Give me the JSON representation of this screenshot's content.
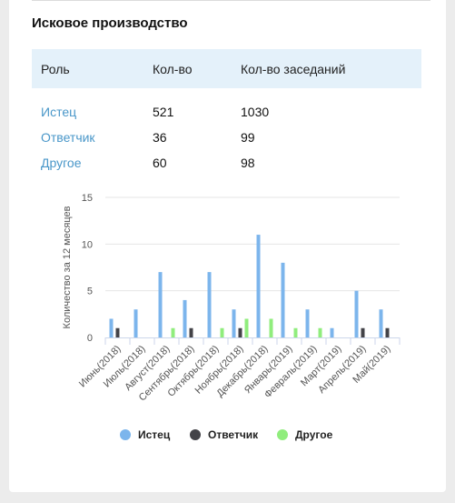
{
  "section": {
    "title": "Исковое производство"
  },
  "table": {
    "headers": [
      "Роль",
      "Кол-во",
      "Кол-во заседаний"
    ],
    "rows": [
      {
        "role": "Истец",
        "count": "521",
        "sessions": "1030"
      },
      {
        "role": "Ответчик",
        "count": "36",
        "sessions": "99"
      },
      {
        "role": "Другое",
        "count": "60",
        "sessions": "98"
      }
    ]
  },
  "chart_data": {
    "type": "bar",
    "ylabel": "Количество за 12 месяцев",
    "xlabel": "",
    "ylim": [
      0,
      15
    ],
    "yticks": [
      "0",
      "5",
      "10",
      "15"
    ],
    "categories": [
      "Июнь(2018)",
      "Июль(2018)",
      "Август(2018)",
      "Сентябрь(2018)",
      "Октябрь(2018)",
      "Ноябрь(2018)",
      "Декабрь(2018)",
      "Январь(2019)",
      "Февраль(2019)",
      "Март(2019)",
      "Апрель(2019)",
      "Май(2019)"
    ],
    "series": [
      {
        "name": "Истец",
        "color": "#7cb5ec",
        "values": [
          2,
          3,
          7,
          4,
          7,
          3,
          11,
          8,
          3,
          1,
          5,
          3
        ]
      },
      {
        "name": "Ответчик",
        "color": "#434348",
        "values": [
          1,
          0,
          0,
          1,
          0,
          1,
          0,
          0,
          0,
          0,
          1,
          1
        ]
      },
      {
        "name": "Другое",
        "color": "#90ed7d",
        "values": [
          0,
          0,
          1,
          0,
          1,
          2,
          2,
          1,
          1,
          0,
          0,
          0
        ]
      }
    ],
    "legend_position": "bottom",
    "grid": true
  }
}
